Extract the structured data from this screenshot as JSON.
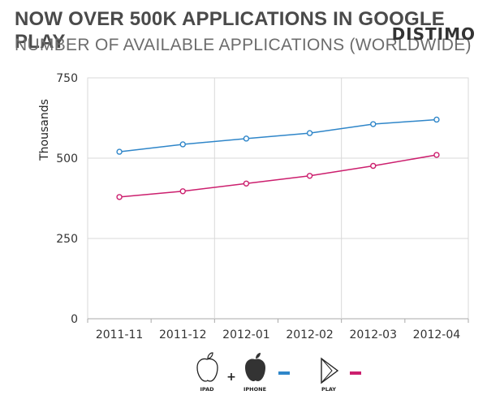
{
  "header": {
    "title": "NOW OVER 500K APPLICATIONS IN GOOGLE PLAY",
    "subtitle": "NUMBER OF AVAILABLE APPLICATIONS (WORLDWIDE)",
    "logo": "DISTIMO"
  },
  "legend": {
    "ipad_label": "IPAD",
    "plus": "+",
    "iphone_label": "IPHONE",
    "play_label": "PLAY",
    "ipad_icon": "apple-outline-icon",
    "iphone_icon": "apple-filled-icon",
    "play_icon": "play-triangle-icon"
  },
  "colors": {
    "ios": "#2f86c9",
    "play": "#cc1f6e",
    "grid": "#d9d9d9",
    "axis": "#aaaaaa",
    "text": "#333333"
  },
  "chart_data": {
    "type": "line",
    "categories": [
      "2011-11",
      "2011-12",
      "2012-01",
      "2012-02",
      "2012-03",
      "2012-04"
    ],
    "series": [
      {
        "key": "ios",
        "values": [
          520,
          543,
          561,
          578,
          606,
          620
        ]
      },
      {
        "key": "play",
        "values": [
          379,
          397,
          421,
          445,
          476,
          510
        ]
      }
    ],
    "ylabel": "Thousands",
    "ylim": [
      0,
      750
    ],
    "yticks": [
      0,
      250,
      500,
      750
    ],
    "grid": true
  }
}
